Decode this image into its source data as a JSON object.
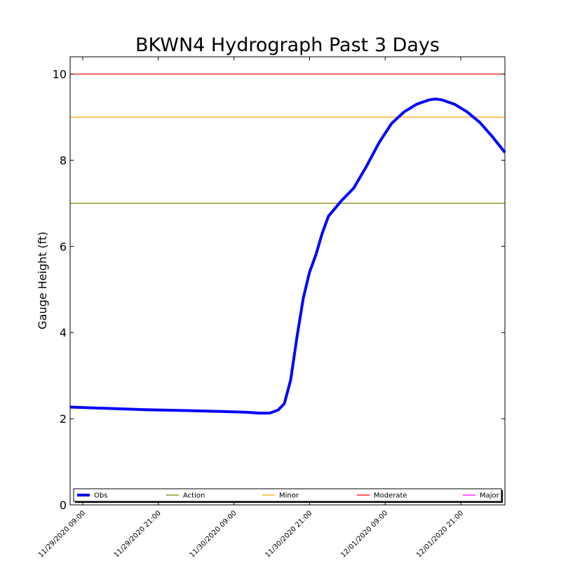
{
  "chart_data": {
    "type": "line",
    "title": "BKWN4 Hydrograph Past 3 Days",
    "ylabel": "Gauge Height (ft)",
    "xlabel": "",
    "xlim": [
      "11/29/2020 07:00",
      "12/02/2020 04:00"
    ],
    "ylim": [
      0,
      10.4
    ],
    "y_ticks": [
      0,
      2,
      4,
      6,
      8,
      10
    ],
    "x_ticks": [
      "11/29/2020 09:00",
      "11/29/2020 21:00",
      "11/30/2020 09:00",
      "11/30/2020 21:00",
      "12/01/2020 09:00",
      "12/01/2020 21:00"
    ],
    "grid": false,
    "legend_position": "bottom",
    "series": [
      {
        "name": "Obs",
        "color": "#0000ff",
        "points": [
          [
            "11/29/2020 07:00",
            2.27
          ],
          [
            "11/29/2020 13:00",
            2.24
          ],
          [
            "11/29/2020 19:00",
            2.21
          ],
          [
            "11/30/2020 01:00",
            2.19
          ],
          [
            "11/30/2020 07:00",
            2.17
          ],
          [
            "11/30/2020 11:00",
            2.15
          ],
          [
            "11/30/2020 13:00",
            2.13
          ],
          [
            "11/30/2020 14:40",
            2.13
          ],
          [
            "11/30/2020 16:00",
            2.2
          ],
          [
            "11/30/2020 17:00",
            2.35
          ],
          [
            "11/30/2020 18:00",
            2.9
          ],
          [
            "11/30/2020 19:00",
            3.9
          ],
          [
            "11/30/2020 20:00",
            4.8
          ],
          [
            "11/30/2020 21:00",
            5.4
          ],
          [
            "11/30/2020 22:00",
            5.8
          ],
          [
            "11/30/2020 23:00",
            6.3
          ],
          [
            "12/01/2020 00:00",
            6.7
          ],
          [
            "12/01/2020 02:00",
            7.05
          ],
          [
            "12/01/2020 04:00",
            7.35
          ],
          [
            "12/01/2020 06:00",
            7.85
          ],
          [
            "12/01/2020 08:00",
            8.4
          ],
          [
            "12/01/2020 10:00",
            8.85
          ],
          [
            "12/01/2020 12:00",
            9.12
          ],
          [
            "12/01/2020 14:00",
            9.3
          ],
          [
            "12/01/2020 16:00",
            9.4
          ],
          [
            "12/01/2020 17:00",
            9.42
          ],
          [
            "12/01/2020 18:00",
            9.4
          ],
          [
            "12/01/2020 20:00",
            9.3
          ],
          [
            "12/01/2020 22:00",
            9.12
          ],
          [
            "12/02/2020 00:00",
            8.88
          ],
          [
            "12/02/2020 02:00",
            8.55
          ],
          [
            "12/02/2020 04:00",
            8.18
          ]
        ]
      }
    ],
    "thresholds": [
      {
        "name": "Action",
        "value": 7,
        "color": "#808000"
      },
      {
        "name": "Minor",
        "value": 9,
        "color": "#ffa500"
      },
      {
        "name": "Moderate",
        "value": 10,
        "color": "#ff0000"
      },
      {
        "name": "Major",
        "value": null,
        "color": "#ff00ff"
      }
    ]
  }
}
